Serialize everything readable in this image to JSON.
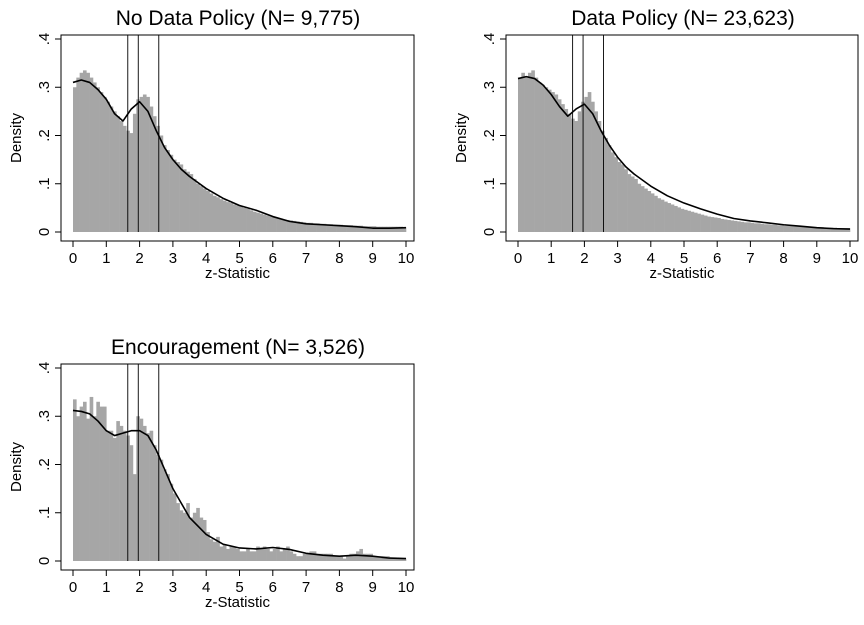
{
  "colors": {
    "bar": "#a6a6a6",
    "curve": "#000000",
    "frame": "#000000"
  },
  "chart_data": [
    {
      "type": "bar",
      "title": "No Data Policy (N=   9,775)",
      "xlabel": "z-Statistic",
      "ylabel": "Density",
      "xlim": [
        0,
        10
      ],
      "ylim": [
        0,
        0.4
      ],
      "x_ticks": [
        "0",
        "1",
        "2",
        "3",
        "4",
        "5",
        "6",
        "7",
        "8",
        "9",
        "10"
      ],
      "y_ticks": [
        "0",
        ".1",
        ".2",
        ".3",
        ".4"
      ],
      "reference_lines_x": [
        1.645,
        1.96,
        2.576
      ],
      "bin_width": 0.1,
      "values": [
        0.3,
        0.32,
        0.33,
        0.335,
        0.33,
        0.32,
        0.31,
        0.3,
        0.29,
        0.28,
        0.27,
        0.26,
        0.25,
        0.24,
        0.23,
        0.22,
        0.21,
        0.205,
        0.245,
        0.275,
        0.28,
        0.285,
        0.28,
        0.26,
        0.24,
        0.22,
        0.2,
        0.18,
        0.17,
        0.16,
        0.15,
        0.145,
        0.14,
        0.13,
        0.125,
        0.12,
        0.11,
        0.1,
        0.095,
        0.09,
        0.085,
        0.08,
        0.075,
        0.072,
        0.068,
        0.065,
        0.062,
        0.06,
        0.057,
        0.055,
        0.053,
        0.05,
        0.048,
        0.045,
        0.042,
        0.04,
        0.038,
        0.036,
        0.034,
        0.032,
        0.03,
        0.029,
        0.028,
        0.026,
        0.025,
        0.024,
        0.023,
        0.022,
        0.021,
        0.02,
        0.019,
        0.019,
        0.018,
        0.018,
        0.017,
        0.017,
        0.016,
        0.016,
        0.015,
        0.015,
        0.015,
        0.014,
        0.014,
        0.014,
        0.013,
        0.013,
        0.013,
        0.012,
        0.012,
        0.012,
        0.012,
        0.011,
        0.011,
        0.011,
        0.011,
        0.011,
        0.011,
        0.011,
        0.011,
        0.01
      ],
      "density_x": [
        0,
        0.25,
        0.5,
        0.75,
        1,
        1.25,
        1.5,
        1.75,
        2,
        2.25,
        2.5,
        2.75,
        3,
        3.25,
        3.5,
        4,
        4.5,
        5,
        5.5,
        6,
        6.5,
        7,
        7.5,
        8,
        8.5,
        9,
        9.5,
        10
      ],
      "density_y": [
        0.31,
        0.315,
        0.31,
        0.295,
        0.275,
        0.245,
        0.23,
        0.255,
        0.27,
        0.25,
        0.21,
        0.175,
        0.15,
        0.13,
        0.115,
        0.09,
        0.07,
        0.055,
        0.045,
        0.032,
        0.022,
        0.017,
        0.015,
        0.013,
        0.011,
        0.008,
        0.008,
        0.009
      ]
    },
    {
      "type": "bar",
      "title": "Data Policy (N=  23,623)",
      "xlabel": "z-Statistic",
      "ylabel": "Density",
      "xlim": [
        0,
        10
      ],
      "ylim": [
        0,
        0.4
      ],
      "x_ticks": [
        "0",
        "1",
        "2",
        "3",
        "4",
        "5",
        "6",
        "7",
        "8",
        "9",
        "10"
      ],
      "y_ticks": [
        "0",
        ".1",
        ".2",
        ".3",
        ".4"
      ],
      "reference_lines_x": [
        1.645,
        1.96,
        2.576
      ],
      "bin_width": 0.1,
      "values": [
        0.32,
        0.33,
        0.32,
        0.33,
        0.335,
        0.32,
        0.31,
        0.305,
        0.3,
        0.295,
        0.29,
        0.285,
        0.275,
        0.265,
        0.255,
        0.245,
        0.235,
        0.23,
        0.25,
        0.27,
        0.28,
        0.29,
        0.27,
        0.25,
        0.23,
        0.21,
        0.195,
        0.18,
        0.165,
        0.155,
        0.145,
        0.14,
        0.13,
        0.12,
        0.115,
        0.11,
        0.1,
        0.095,
        0.09,
        0.085,
        0.08,
        0.075,
        0.07,
        0.067,
        0.063,
        0.06,
        0.057,
        0.054,
        0.051,
        0.048,
        0.046,
        0.044,
        0.042,
        0.04,
        0.038,
        0.036,
        0.034,
        0.032,
        0.031,
        0.03,
        0.029,
        0.027,
        0.026,
        0.025,
        0.024,
        0.023,
        0.022,
        0.021,
        0.02,
        0.02,
        0.019,
        0.018,
        0.018,
        0.017,
        0.016,
        0.016,
        0.015,
        0.015,
        0.014,
        0.014,
        0.013,
        0.013,
        0.013,
        0.012,
        0.012,
        0.011,
        0.011,
        0.011,
        0.01,
        0.01,
        0.01,
        0.01,
        0.009,
        0.009,
        0.009,
        0.009,
        0.008,
        0.008,
        0.008,
        0.008
      ],
      "density_x": [
        0,
        0.25,
        0.5,
        0.75,
        1,
        1.25,
        1.5,
        1.75,
        2,
        2.25,
        2.5,
        2.75,
        3,
        3.25,
        3.5,
        4,
        4.5,
        5,
        5.5,
        6,
        6.5,
        7,
        7.5,
        8,
        8.5,
        9,
        9.5,
        10
      ],
      "density_y": [
        0.318,
        0.322,
        0.318,
        0.305,
        0.285,
        0.26,
        0.24,
        0.255,
        0.265,
        0.245,
        0.21,
        0.18,
        0.155,
        0.135,
        0.12,
        0.095,
        0.075,
        0.06,
        0.048,
        0.037,
        0.028,
        0.023,
        0.019,
        0.015,
        0.012,
        0.009,
        0.007,
        0.006
      ]
    },
    {
      "type": "bar",
      "title": "Encouragement (N=   3,526)",
      "xlabel": "z-Statistic",
      "ylabel": "Density",
      "xlim": [
        0,
        10
      ],
      "ylim": [
        0,
        0.4
      ],
      "x_ticks": [
        "0",
        "1",
        "2",
        "3",
        "4",
        "5",
        "6",
        "7",
        "8",
        "9",
        "10"
      ],
      "y_ticks": [
        "0",
        ".1",
        ".2",
        ".3",
        ".4"
      ],
      "reference_lines_x": [
        1.645,
        1.96,
        2.576
      ],
      "bin_width": 0.1,
      "values": [
        0.335,
        0.3,
        0.32,
        0.33,
        0.295,
        0.34,
        0.3,
        0.33,
        0.32,
        0.32,
        0.27,
        0.27,
        0.255,
        0.29,
        0.28,
        0.27,
        0.26,
        0.24,
        0.18,
        0.3,
        0.295,
        0.28,
        0.265,
        0.27,
        0.24,
        0.22,
        0.21,
        0.19,
        0.18,
        0.16,
        0.14,
        0.12,
        0.105,
        0.1,
        0.12,
        0.09,
        0.1,
        0.11,
        0.09,
        0.085,
        0.06,
        0.045,
        0.04,
        0.05,
        0.03,
        0.035,
        0.025,
        0.03,
        0.03,
        0.025,
        0.02,
        0.02,
        0.025,
        0.02,
        0.02,
        0.03,
        0.025,
        0.03,
        0.025,
        0.02,
        0.025,
        0.03,
        0.02,
        0.025,
        0.03,
        0.02,
        0.015,
        0.01,
        0.01,
        0.015,
        0.015,
        0.02,
        0.02,
        0.015,
        0.015,
        0.015,
        0.015,
        0.015,
        0.01,
        0.01,
        0.01,
        0.005,
        0.01,
        0.015,
        0.015,
        0.02,
        0.025,
        0.015,
        0.015,
        0.015,
        0.01,
        0.01,
        0.01,
        0.01,
        0.01,
        0.005,
        0.005,
        0.005,
        0.005,
        0.005
      ],
      "density_x": [
        0,
        0.25,
        0.5,
        0.75,
        1,
        1.25,
        1.5,
        1.75,
        2,
        2.25,
        2.5,
        2.75,
        3,
        3.25,
        3.5,
        4,
        4.5,
        5,
        5.5,
        6,
        6.5,
        7,
        7.5,
        8,
        8.5,
        9,
        9.5,
        10
      ],
      "density_y": [
        0.312,
        0.31,
        0.305,
        0.29,
        0.27,
        0.26,
        0.265,
        0.27,
        0.27,
        0.26,
        0.23,
        0.19,
        0.15,
        0.12,
        0.09,
        0.055,
        0.035,
        0.027,
        0.025,
        0.028,
        0.024,
        0.016,
        0.012,
        0.01,
        0.012,
        0.01,
        0.006,
        0.005
      ]
    }
  ]
}
